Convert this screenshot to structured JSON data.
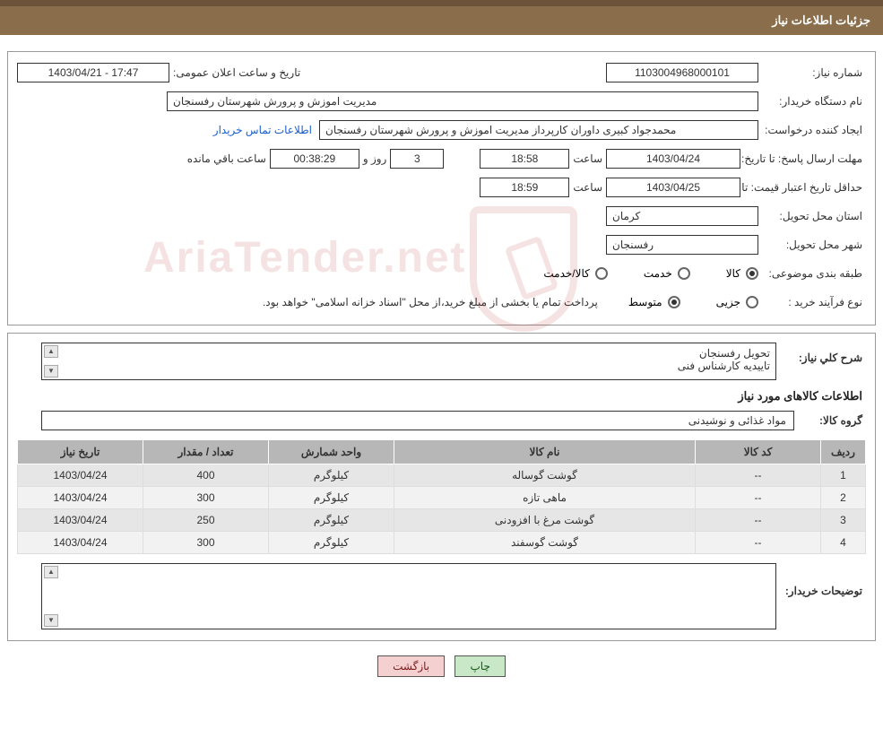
{
  "header": {
    "title": "جزئیات اطلاعات نیاز"
  },
  "colors": {
    "header_bg": "#8a6d4a",
    "header_border": "#6b5238",
    "panel_border": "#999999",
    "field_border": "#333333",
    "link": "#1a5ec8",
    "table_header_bg": "#b7b7b7",
    "row_odd": "#e6e6e6",
    "row_even": "#f2f2f2",
    "btn_green_bg": "#c8e8c8",
    "btn_pink_bg": "#f5d0d0"
  },
  "fields": {
    "need_number": {
      "label": "شماره نیاز:",
      "value": "1103004968000101"
    },
    "announce": {
      "label": "تاریخ و ساعت اعلان عمومی:",
      "value": "17:47 - 1403/04/21"
    },
    "buyer_org": {
      "label": "نام دستگاه خریدار:",
      "value": "مدیریت اموزش و پرورش شهرستان رفسنجان"
    },
    "requester": {
      "label": "ایجاد کننده درخواست:",
      "value": "محمدجواد کبیری داوران کارپرداز مدیریت اموزش و پرورش شهرستان رفسنجان"
    },
    "buyer_contact_link": "اطلاعات تماس خریدار",
    "response_deadline": {
      "label": "مهلت ارسال پاسخ: تا تاریخ:",
      "date": "1403/04/24",
      "time_label": "ساعت",
      "time": "18:58",
      "days": "3",
      "days_label": "روز و",
      "remaining": "00:38:29",
      "remaining_label": "ساعت باقي مانده"
    },
    "price_validity": {
      "label": "حداقل تاریخ اعتبار قیمت: تا تاریخ:",
      "date": "1403/04/25",
      "time_label": "ساعت",
      "time": "18:59"
    },
    "delivery_province": {
      "label": "استان محل تحویل:",
      "value": "کرمان"
    },
    "delivery_city": {
      "label": "شهر محل تحویل:",
      "value": "رفسنجان"
    },
    "subject_category": {
      "label": "طبقه بندی موضوعی:",
      "options": [
        "کالا",
        "خدمت",
        "کالا/خدمت"
      ],
      "selected": 0
    },
    "purchase_process": {
      "label": "نوع فرآیند خرید :",
      "options": [
        "جزیی",
        "متوسط"
      ],
      "selected": 1,
      "note": "پرداخت تمام یا بخشی از مبلغ خرید،از محل \"اسناد خزانه اسلامی\" خواهد بود."
    }
  },
  "need_description": {
    "label": "شرح کلي نياز:",
    "line1": "تحویل رفسنجان",
    "line2": "تاییدیه کارشناس فنی"
  },
  "goods_section": {
    "title": "اطلاعات کالاهای مورد نیاز",
    "group_label": "گروه کالا:",
    "group_value": "مواد غذائی و نوشیدنی"
  },
  "table": {
    "headers": [
      "ردیف",
      "کد کالا",
      "نام کالا",
      "واحد شمارش",
      "تعداد / مقدار",
      "تاریخ نیاز"
    ],
    "col_widths": [
      "50px",
      "140px",
      "auto",
      "140px",
      "140px",
      "140px"
    ],
    "rows": [
      {
        "idx": "1",
        "code": "--",
        "name": "گوشت گوساله",
        "unit": "کیلوگرم",
        "qty": "400",
        "date": "1403/04/24"
      },
      {
        "idx": "2",
        "code": "--",
        "name": "ماهی تازه",
        "unit": "کیلوگرم",
        "qty": "300",
        "date": "1403/04/24"
      },
      {
        "idx": "3",
        "code": "--",
        "name": "گوشت مرغ با افزودنی",
        "unit": "کیلوگرم",
        "qty": "250",
        "date": "1403/04/24"
      },
      {
        "idx": "4",
        "code": "--",
        "name": "گوشت گوسفند",
        "unit": "کیلوگرم",
        "qty": "300",
        "date": "1403/04/24"
      }
    ]
  },
  "buyer_notes": {
    "label": "توضیحات خریدار:",
    "value": ""
  },
  "buttons": {
    "print": "چاپ",
    "back": "بازگشت"
  },
  "watermark": "AriaTender.net"
}
